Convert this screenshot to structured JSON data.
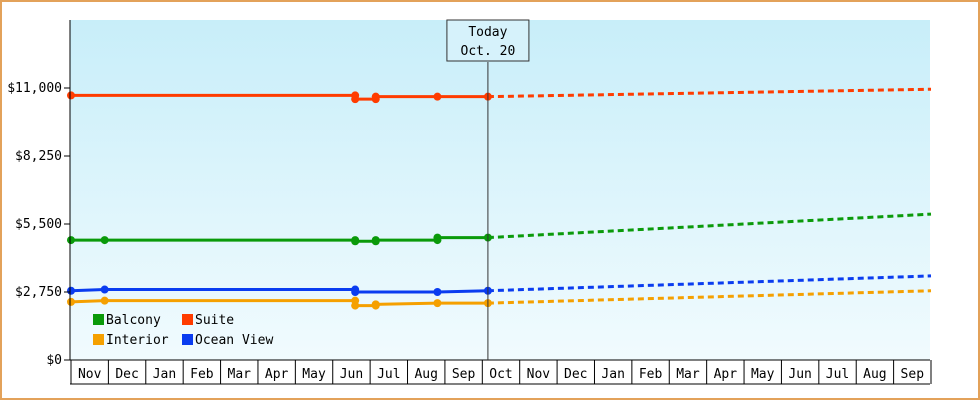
{
  "chart_data": {
    "type": "line",
    "title": "",
    "xlabel": "",
    "ylabel": "",
    "ylim": [
      0,
      13750
    ],
    "yticks": [
      "$0",
      "$2,750",
      "$5,500",
      "$8,250",
      "$11,000"
    ],
    "ytick_values": [
      0,
      2750,
      5500,
      8250,
      11000
    ],
    "categories": [
      "Nov",
      "Dec",
      "Jan",
      "Feb",
      "Mar",
      "Apr",
      "May",
      "Jun",
      "Jul",
      "Aug",
      "Sep",
      "Oct",
      "Nov",
      "Dec",
      "Jan",
      "Feb",
      "Mar",
      "Apr",
      "May",
      "Jun",
      "Jul",
      "Aug",
      "Sep"
    ],
    "today_marker": {
      "line1": "Today",
      "line2": "Oct. 20",
      "x": 11.15
    },
    "grid": false,
    "legend_position": "bottom-left",
    "colors": {
      "background_top": "#c8eef9",
      "background_bottom": "#f1fbfe",
      "frame": "#e3a25a"
    },
    "series": [
      {
        "name": "Suite",
        "color": "#ff3c00",
        "actual": [
          [
            0.0,
            10700
          ],
          [
            7.6,
            10700
          ],
          [
            7.6,
            10550
          ],
          [
            8.15,
            10550
          ],
          [
            8.15,
            10650
          ],
          [
            9.8,
            10650
          ],
          [
            11.15,
            10650
          ]
        ],
        "actual_points": [
          [
            0.0,
            10700
          ],
          [
            7.6,
            10700
          ],
          [
            7.6,
            10550
          ],
          [
            8.15,
            10550
          ],
          [
            8.15,
            10650
          ],
          [
            9.8,
            10650
          ],
          [
            11.15,
            10650
          ]
        ],
        "projected": [
          [
            11.15,
            10650
          ],
          [
            23.0,
            10950
          ]
        ]
      },
      {
        "name": "Balcony",
        "color": "#0a9a0a",
        "actual": [
          [
            0.0,
            4850
          ],
          [
            0.9,
            4850
          ],
          [
            7.6,
            4850
          ],
          [
            7.6,
            4800
          ],
          [
            8.15,
            4800
          ],
          [
            8.15,
            4850
          ],
          [
            9.8,
            4850
          ],
          [
            9.8,
            4950
          ],
          [
            11.15,
            4950
          ]
        ],
        "actual_points": [
          [
            0.0,
            4850
          ],
          [
            0.9,
            4850
          ],
          [
            7.6,
            4850
          ],
          [
            7.6,
            4800
          ],
          [
            8.15,
            4800
          ],
          [
            8.15,
            4850
          ],
          [
            9.8,
            4850
          ],
          [
            9.8,
            4950
          ],
          [
            11.15,
            4950
          ]
        ],
        "projected": [
          [
            11.15,
            4950
          ],
          [
            23.0,
            5900
          ]
        ]
      },
      {
        "name": "Ocean View",
        "color": "#0a3cf0",
        "actual": [
          [
            0.0,
            2800
          ],
          [
            0.9,
            2850
          ],
          [
            7.6,
            2850
          ],
          [
            7.6,
            2750
          ],
          [
            9.8,
            2750
          ],
          [
            11.15,
            2800
          ]
        ],
        "actual_points": [
          [
            0.0,
            2800
          ],
          [
            0.9,
            2850
          ],
          [
            7.6,
            2850
          ],
          [
            7.6,
            2750
          ],
          [
            9.8,
            2750
          ],
          [
            11.15,
            2800
          ]
        ],
        "projected": [
          [
            11.15,
            2800
          ],
          [
            23.0,
            3400
          ]
        ]
      },
      {
        "name": "Interior",
        "color": "#f5a000",
        "actual": [
          [
            0.0,
            2350
          ],
          [
            0.9,
            2400
          ],
          [
            7.6,
            2400
          ],
          [
            7.6,
            2200
          ],
          [
            8.15,
            2200
          ],
          [
            8.15,
            2250
          ],
          [
            9.8,
            2300
          ],
          [
            11.15,
            2300
          ]
        ],
        "actual_points": [
          [
            0.0,
            2350
          ],
          [
            0.9,
            2400
          ],
          [
            7.6,
            2400
          ],
          [
            7.6,
            2200
          ],
          [
            8.15,
            2200
          ],
          [
            8.15,
            2250
          ],
          [
            9.8,
            2300
          ],
          [
            11.15,
            2300
          ]
        ],
        "projected": [
          [
            11.15,
            2300
          ],
          [
            23.0,
            2800
          ]
        ]
      }
    ],
    "legend": [
      {
        "label": "Balcony",
        "color": "#0a9a0a"
      },
      {
        "label": "Suite",
        "color": "#ff3c00"
      },
      {
        "label": "Interior",
        "color": "#f5a000"
      },
      {
        "label": "Ocean View",
        "color": "#0a3cf0"
      }
    ]
  }
}
